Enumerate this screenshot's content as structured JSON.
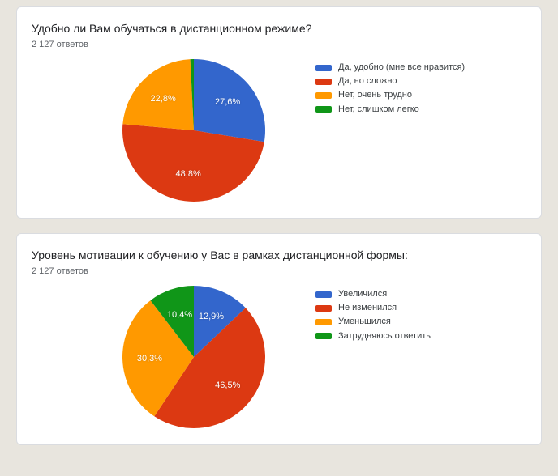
{
  "page": {
    "background_color": "#e8e5de",
    "card_background": "#ffffff",
    "card_border": "#dadce0"
  },
  "palette": {
    "blue": "#3366cc",
    "red": "#dc3912",
    "orange": "#ff9900",
    "green": "#109618"
  },
  "cards": [
    {
      "title": "Удобно ли Вам обучаться в дистанционном режиме?",
      "responses_label": "2 127 ответов",
      "chart": {
        "type": "pie",
        "start_angle_deg": -90,
        "slices": [
          {
            "label": "Да, удобно (мне все нравится)",
            "value": 27.6,
            "text": "27,6%",
            "color": "#3366cc",
            "show_label": true
          },
          {
            "label": "Да, но сложно",
            "value": 48.8,
            "text": "48,8%",
            "color": "#dc3912",
            "show_label": true
          },
          {
            "label": "Нет, очень трудно",
            "value": 22.8,
            "text": "22,8%",
            "color": "#ff9900",
            "show_label": true
          },
          {
            "label": "Нет, слишком легко",
            "value": 0.8,
            "text": "",
            "color": "#109618",
            "show_label": false
          }
        ],
        "label_fontsize": 11,
        "label_color": "#ffffff"
      }
    },
    {
      "title": "Уровень мотивации к обучению у Вас в рамках дистанционной формы:",
      "responses_label": "2 127 ответов",
      "chart": {
        "type": "pie",
        "start_angle_deg": -90,
        "slices": [
          {
            "label": "Увеличился",
            "value": 12.9,
            "text": "12,9%",
            "color": "#3366cc",
            "show_label": true
          },
          {
            "label": "Не изменился",
            "value": 46.5,
            "text": "46,5%",
            "color": "#dc3912",
            "show_label": true
          },
          {
            "label": "Уменьшился",
            "value": 30.3,
            "text": "30,3%",
            "color": "#ff9900",
            "show_label": true
          },
          {
            "label": "Затрудняюсь ответить",
            "value": 10.4,
            "text": "10,4%",
            "color": "#109618",
            "show_label": true
          }
        ],
        "label_fontsize": 11,
        "label_color": "#ffffff"
      }
    }
  ]
}
